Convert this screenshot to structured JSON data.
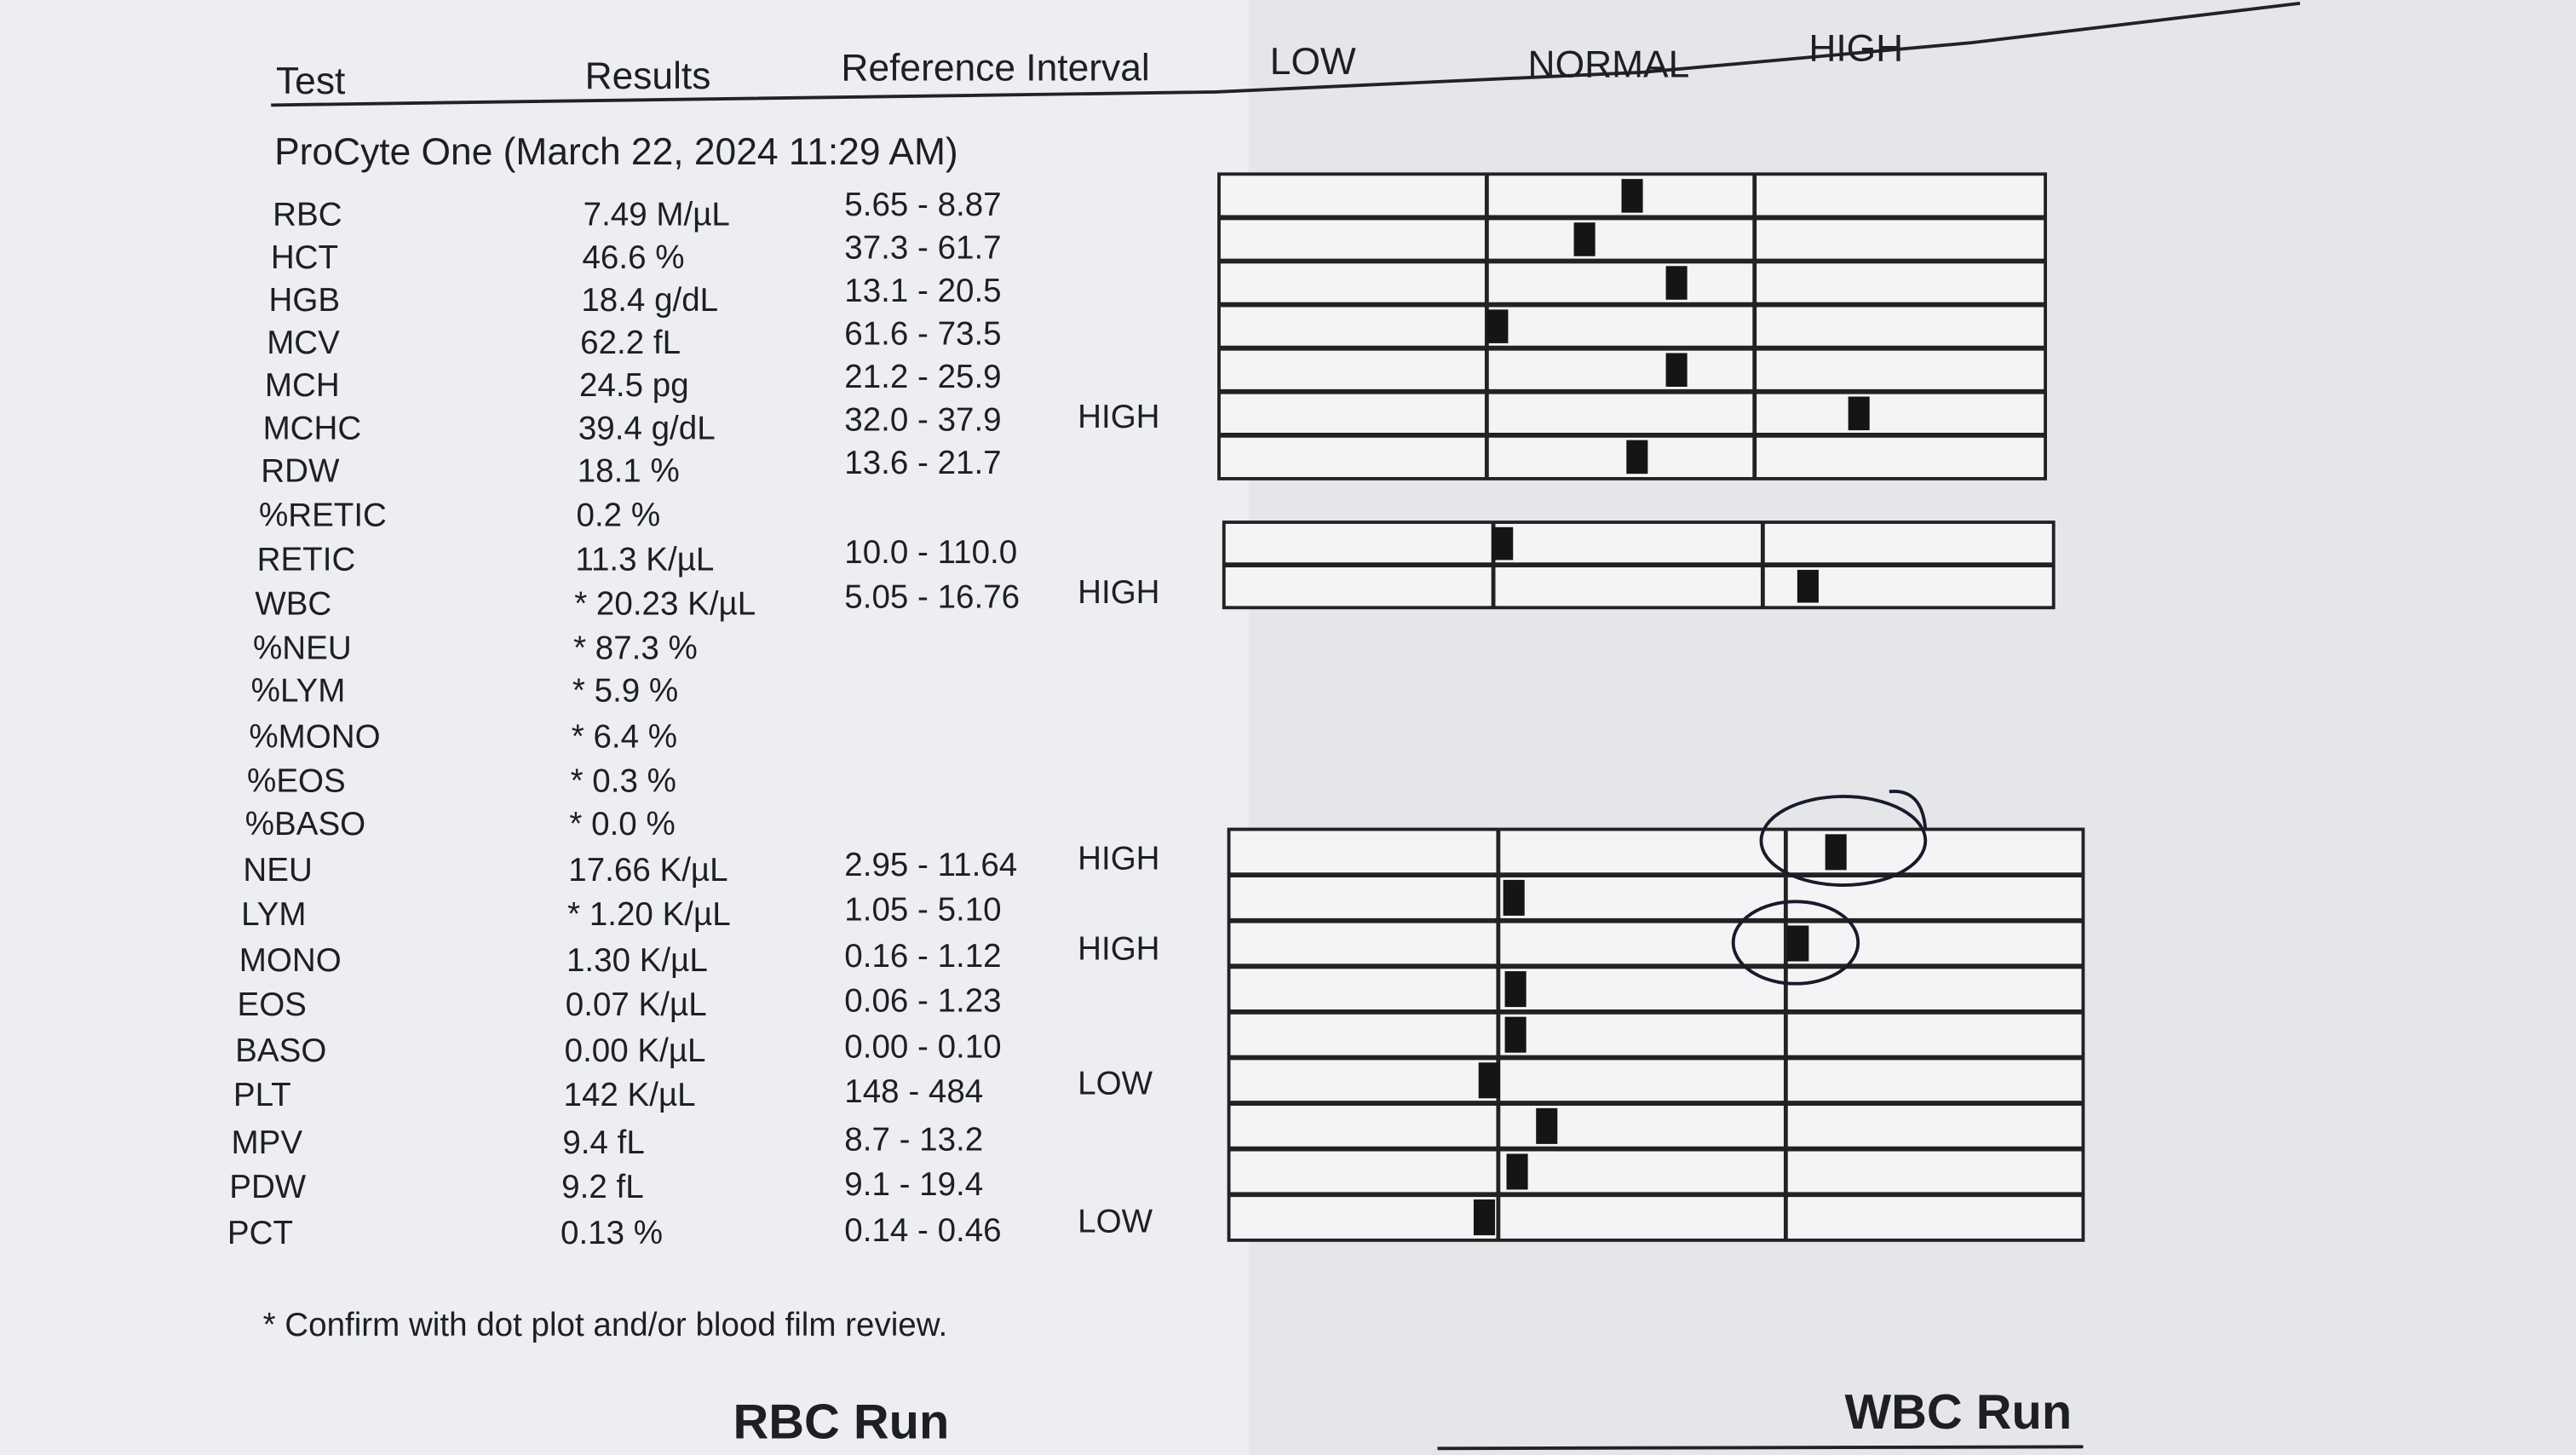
{
  "header": {
    "test": "Test",
    "results": "Results",
    "reference_interval": "Reference Interval",
    "low": "LOW",
    "normal": "NORMAL",
    "high": "HIGH"
  },
  "section_title": "ProCyte One (March 22, 2024 11:29 AM)",
  "rows": [
    {
      "test": "RBC",
      "result": "7.49 M/µL",
      "reference": "5.65 - 8.87"
    },
    {
      "test": "HCT",
      "result": "46.6 %",
      "reference": "37.3 - 61.7"
    },
    {
      "test": "HGB",
      "result": "18.4 g/dL",
      "reference": "13.1 - 20.5"
    },
    {
      "test": "MCV",
      "result": "62.2 fL",
      "reference": "61.6 - 73.5"
    },
    {
      "test": "MCH",
      "result": "24.5 pg",
      "reference": "21.2 - 25.9"
    },
    {
      "test": "MCHC",
      "result": "39.4 g/dL",
      "reference": "32.0 - 37.9",
      "flag": "HIGH"
    },
    {
      "test": "RDW",
      "result": "18.1 %",
      "reference": "13.6 - 21.7"
    },
    {
      "test": "%RETIC",
      "result": "0.2 %"
    },
    {
      "test": "RETIC",
      "result": "11.3 K/µL",
      "reference": "10.0 - 110.0"
    },
    {
      "test": "WBC",
      "result": "* 20.23 K/µL",
      "reference": "5.05 - 16.76",
      "flag": "HIGH"
    },
    {
      "test": "%NEU",
      "result": "* 87.3 %"
    },
    {
      "test": "%LYM",
      "result": "* 5.9 %"
    },
    {
      "test": "%MONO",
      "result": "* 6.4 %"
    },
    {
      "test": "%EOS",
      "result": "* 0.3 %"
    },
    {
      "test": "%BASO",
      "result": "* 0.0 %"
    },
    {
      "test": "NEU",
      "result": "17.66 K/µL",
      "reference": "2.95 - 11.64",
      "flag": "HIGH"
    },
    {
      "test": "LYM",
      "result": "* 1.20 K/µL",
      "reference": "1.05 - 5.10"
    },
    {
      "test": "MONO",
      "result": "1.30 K/µL",
      "reference": "0.16 - 1.12",
      "flag": "HIGH"
    },
    {
      "test": "EOS",
      "result": "0.07 K/µL",
      "reference": "0.06 - 1.23"
    },
    {
      "test": "BASO",
      "result": "0.00 K/µL",
      "reference": "0.00 - 0.10"
    },
    {
      "test": "PLT",
      "result": "142 K/µL",
      "reference": "148 - 484",
      "flag": "LOW"
    },
    {
      "test": "MPV",
      "result": "9.4 fL",
      "reference": "8.7 - 13.2"
    },
    {
      "test": "PDW",
      "result": "9.2 fL",
      "reference": "9.1 - 19.4"
    },
    {
      "test": "PCT",
      "result": "0.13 %",
      "reference": "0.14 - 0.46",
      "flag": "LOW"
    }
  ],
  "footnote": "* Confirm with dot plot and/or blood film review.",
  "runs": [
    "RBC Run",
    "WBC Run"
  ]
}
